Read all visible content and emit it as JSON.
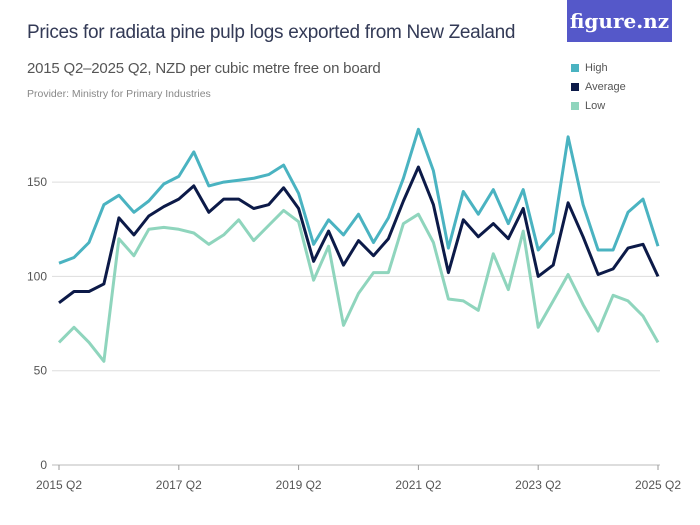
{
  "header": {
    "title": "Prices for  radiata pine pulp logs exported from New Zealand",
    "subtitle": "2015 Q2–2025 Q2, NZD per cubic metre free on board",
    "provider": "Provider: Ministry for Primary Industries",
    "logo_text": "figure.nz",
    "logo_color": "#5558c9"
  },
  "chart_data": {
    "type": "line",
    "title": "Prices for  radiata pine pulp logs exported from New Zealand",
    "subtitle": "2015 Q2–2025 Q2, NZD per cubic metre free on board",
    "xlabel": "",
    "ylabel": "",
    "ylim": [
      0,
      190
    ],
    "yticks": [
      0,
      50,
      100,
      150
    ],
    "xtick_labels": [
      "2015 Q2",
      "2017 Q2",
      "2019 Q2",
      "2021 Q2",
      "2023 Q2",
      "2025 Q2"
    ],
    "grid": "horizontal",
    "legend_position": "top-right",
    "x": [
      "2015 Q2",
      "2015 Q3",
      "2015 Q4",
      "2016 Q1",
      "2016 Q2",
      "2016 Q3",
      "2016 Q4",
      "2017 Q1",
      "2017 Q2",
      "2017 Q3",
      "2017 Q4",
      "2018 Q1",
      "2018 Q2",
      "2018 Q3",
      "2018 Q4",
      "2019 Q1",
      "2019 Q2",
      "2019 Q3",
      "2019 Q4",
      "2020 Q1",
      "2020 Q2",
      "2020 Q3",
      "2020 Q4",
      "2021 Q1",
      "2021 Q2",
      "2021 Q3",
      "2021 Q4",
      "2022 Q1",
      "2022 Q2",
      "2022 Q3",
      "2022 Q4",
      "2023 Q1",
      "2023 Q2",
      "2023 Q3",
      "2023 Q4",
      "2024 Q1",
      "2024 Q2",
      "2024 Q3",
      "2024 Q4",
      "2025 Q1",
      "2025 Q2"
    ],
    "series": [
      {
        "name": "High",
        "color": "#4ab3c1",
        "values": [
          107,
          110,
          118,
          138,
          143,
          134,
          140,
          149,
          153,
          166,
          148,
          150,
          151,
          152,
          154,
          159,
          144,
          117,
          130,
          122,
          133,
          118,
          131,
          152,
          178,
          156,
          115,
          145,
          133,
          146,
          128,
          146,
          114,
          123,
          174,
          138,
          114,
          114,
          134,
          141,
          116
        ]
      },
      {
        "name": "Average",
        "color": "#0c1a48",
        "values": [
          86,
          92,
          92,
          96,
          131,
          122,
          132,
          137,
          141,
          148,
          134,
          141,
          141,
          136,
          138,
          147,
          136,
          108,
          124,
          106,
          119,
          111,
          120,
          140,
          158,
          138,
          102,
          130,
          121,
          128,
          120,
          136,
          100,
          106,
          139,
          121,
          101,
          104,
          115,
          117,
          100
        ]
      },
      {
        "name": "Low",
        "color": "#8fd5bd",
        "values": [
          65,
          73,
          65,
          55,
          120,
          111,
          125,
          126,
          125,
          123,
          117,
          122,
          130,
          119,
          127,
          135,
          129,
          98,
          116,
          74,
          91,
          102,
          102,
          128,
          133,
          118,
          88,
          87,
          82,
          112,
          93,
          124,
          73,
          87,
          101,
          85,
          71,
          90,
          87,
          79,
          65
        ]
      }
    ]
  }
}
